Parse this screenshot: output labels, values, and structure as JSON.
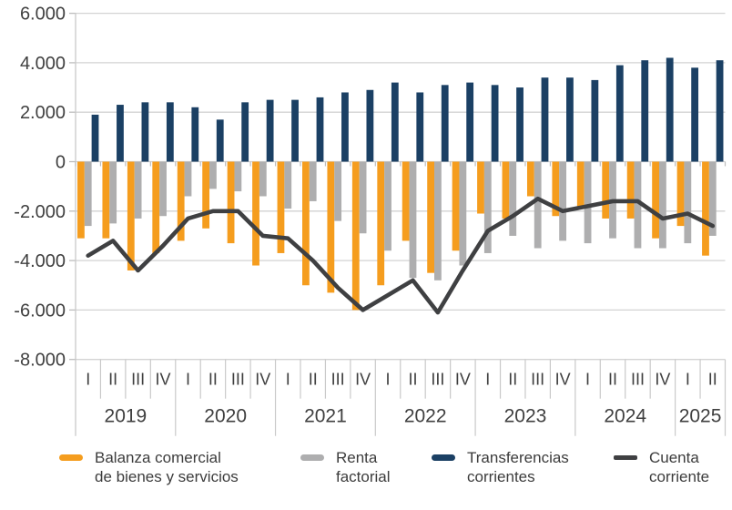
{
  "chart_data": {
    "type": "bar",
    "title": "",
    "xlabel": "",
    "ylabel": "",
    "grid": true,
    "legend_position": "bottom",
    "y_axis": {
      "min": -8000,
      "max": 6000,
      "step": 2000,
      "tick_labels": [
        "6.000",
        "4.000",
        "2.000",
        "0",
        "-2.000",
        "-4.000",
        "-6.000",
        "-8.000"
      ]
    },
    "x_axis": {
      "years": [
        {
          "label": "2019",
          "quarters": [
            "I",
            "II",
            "III",
            "IV"
          ]
        },
        {
          "label": "2020",
          "quarters": [
            "I",
            "II",
            "III",
            "IV"
          ]
        },
        {
          "label": "2021",
          "quarters": [
            "I",
            "II",
            "III",
            "IV"
          ]
        },
        {
          "label": "2022",
          "quarters": [
            "I",
            "II",
            "III",
            "IV"
          ]
        },
        {
          "label": "2023",
          "quarters": [
            "I",
            "II",
            "III",
            "IV"
          ]
        },
        {
          "label": "2024",
          "quarters": [
            "I",
            "II",
            "III",
            "IV"
          ]
        },
        {
          "label": "2025",
          "quarters": [
            "I",
            "II"
          ]
        }
      ]
    },
    "series": [
      {
        "name": "Balanza comercial de bienes y servicios",
        "legend_lines": [
          "Balanza comercial",
          "de bienes y servicios"
        ],
        "type": "bar",
        "color": "#F59D1E",
        "values": [
          -3100,
          -3100,
          -4400,
          -3700,
          -3200,
          -2700,
          -3300,
          -4200,
          -3700,
          -5000,
          -5300,
          -6000,
          -5000,
          -3200,
          -4500,
          -3600,
          -2100,
          -2300,
          -1400,
          -2200,
          -1800,
          -2300,
          -2300,
          -3100,
          -2600,
          -3800
        ]
      },
      {
        "name": "Renta factorial",
        "legend_lines": [
          "Renta",
          "factorial"
        ],
        "type": "bar",
        "color": "#AEAEAF",
        "values": [
          -2600,
          -2500,
          -2300,
          -2200,
          -1400,
          -1100,
          -1200,
          -1400,
          -1900,
          -1600,
          -2400,
          -2900,
          -3600,
          -4700,
          -4800,
          -4200,
          -3700,
          -3000,
          -3500,
          -3200,
          -3300,
          -3100,
          -3500,
          -3500,
          -3300,
          -3000
        ]
      },
      {
        "name": "Transferencias corrientes",
        "legend_lines": [
          "Transferencias",
          "corrientes"
        ],
        "type": "bar",
        "color": "#1B4064",
        "values": [
          1900,
          2300,
          2400,
          2400,
          2200,
          1700,
          2400,
          2500,
          2500,
          2600,
          2800,
          2900,
          3200,
          2800,
          3100,
          3200,
          3100,
          3000,
          3400,
          3400,
          3300,
          3900,
          4100,
          4200,
          3800,
          4100
        ]
      },
      {
        "name": "Cuenta corriente",
        "legend_lines": [
          "Cuenta",
          "corriente"
        ],
        "type": "line",
        "color": "#3F4042",
        "values": [
          -3800,
          -3200,
          -4400,
          -3400,
          -2300,
          -2000,
          -2000,
          -3000,
          -3100,
          -4000,
          -5100,
          -6000,
          -5400,
          -4800,
          -6100,
          -4400,
          -2800,
          -2200,
          -1500,
          -2000,
          -1800,
          -1600,
          -1600,
          -2300,
          -2100,
          -2600
        ]
      }
    ],
    "colors": {
      "gridline": "#D3D3D3",
      "separator": "#C9C9C9",
      "tick": "#BDBDBD",
      "axis_text": "#3F3F3F"
    }
  }
}
